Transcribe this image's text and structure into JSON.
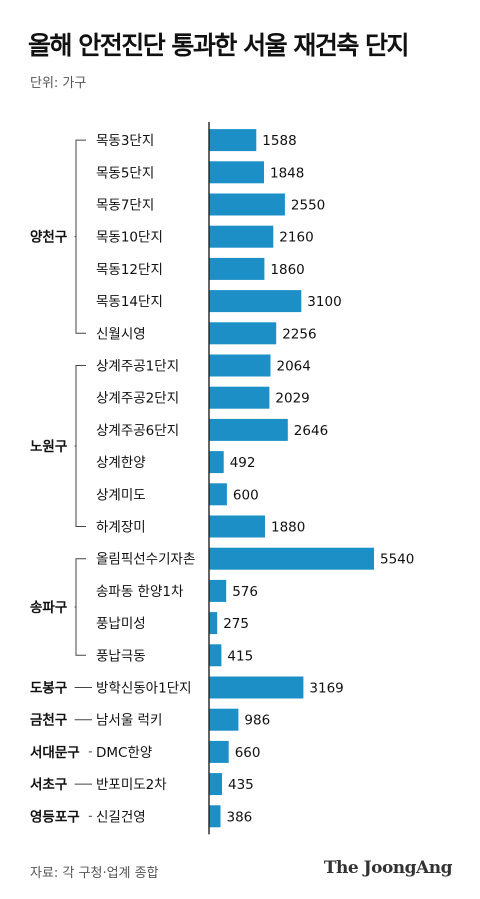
{
  "title": "올해 안전진단 통과한 서울 재건축 단지",
  "unit_label": "단위: 가구",
  "source": "자료: 각 구청·업계 종합",
  "logo": "The JoongAng",
  "colors": {
    "bar": "#1b8fc6",
    "bracket": "#444444",
    "text": "#111111"
  },
  "chart_data": {
    "type": "bar",
    "orientation": "horizontal",
    "title": "올해 안전진단 통과한 서울 재건축 단지",
    "unit": "단위: 가구",
    "xlim": [
      0,
      5540
    ],
    "categories": [
      "목동3단지",
      "목동5단지",
      "목동7단지",
      "목동10단지",
      "목동12단지",
      "목동14단지",
      "신월시영",
      "상계주공1단지",
      "상계주공2단지",
      "상계주공6단지",
      "상계한양",
      "상계미도",
      "하계장미",
      "올림픽선수기자촌",
      "송파동 한양1차",
      "풍납미성",
      "풍납극동",
      "방학신동아1단지",
      "남서울 럭키",
      "DMC한양",
      "반포미도2차",
      "신길건영"
    ],
    "values": [
      1588,
      1848,
      2550,
      2160,
      1860,
      3100,
      2256,
      2064,
      2029,
      2646,
      492,
      600,
      1880,
      5540,
      576,
      275,
      415,
      3169,
      986,
      660,
      435,
      386
    ],
    "groups": [
      {
        "name": "양천구",
        "start": 0,
        "end": 6
      },
      {
        "name": "노원구",
        "start": 7,
        "end": 12
      },
      {
        "name": "송파구",
        "start": 13,
        "end": 16
      },
      {
        "name": "도봉구",
        "start": 17,
        "end": 17
      },
      {
        "name": "금천구",
        "start": 18,
        "end": 18
      },
      {
        "name": "서대문구",
        "start": 19,
        "end": 19
      },
      {
        "name": "서초구",
        "start": 20,
        "end": 20
      },
      {
        "name": "영등포구",
        "start": 21,
        "end": 21
      }
    ]
  }
}
